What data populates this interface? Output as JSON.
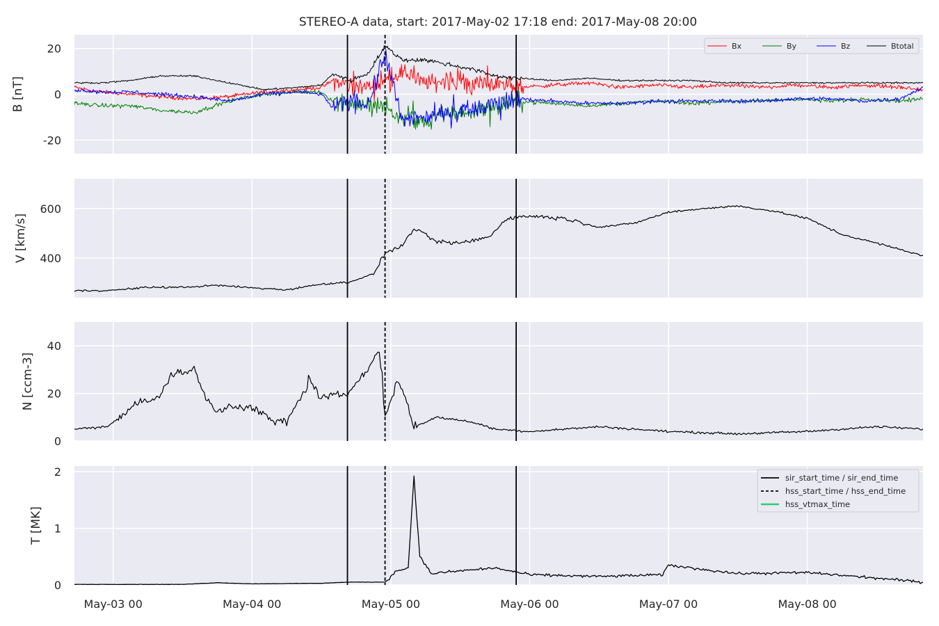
{
  "figure": {
    "title": "STEREO-A data, start: 2017-May-02 17:18  end: 2017-May-08 20:00"
  },
  "colors": {
    "panel_bg": "#eaeaf2",
    "grid": "#ffffff",
    "Bx": "#ff0000",
    "By": "#008000",
    "Bz": "#0000ff",
    "Btotal": "#000000",
    "series": "#000000",
    "hss_vtmax": "#2ecc71"
  },
  "x_axis": {
    "range": [
      "2017-05-02 17:18",
      "2017-05-08 20:00"
    ],
    "ticks": [
      {
        "label": "May-03 00",
        "value": "2017-05-03 00:00"
      },
      {
        "label": "May-04 00",
        "value": "2017-05-04 00:00"
      },
      {
        "label": "May-05 00",
        "value": "2017-05-05 00:00"
      },
      {
        "label": "May-06 00",
        "value": "2017-05-06 00:00"
      },
      {
        "label": "May-07 00",
        "value": "2017-05-07 00:00"
      },
      {
        "label": "May-08 00",
        "value": "2017-05-08 00:00"
      }
    ]
  },
  "events": {
    "sir_start_time": "2017-05-04 16:30",
    "sir_end_time": "2017-05-05 21:40",
    "hss_start_time": "2017-05-04 23:00"
  },
  "legend_events": [
    {
      "label": "sir_start_time / sir_end_time",
      "style": "solid",
      "color": "#000000"
    },
    {
      "label": "hss_start_time / hss_end_time",
      "style": "dashed",
      "color": "#000000"
    },
    {
      "label": "hss_vtmax_time",
      "style": "solid",
      "color": "#2ecc71"
    }
  ],
  "chart_data": [
    {
      "type": "line",
      "panel": "B",
      "ylabel": "B [nT]",
      "ylim": [
        -26,
        26
      ],
      "yticks": [
        -20,
        0,
        20
      ],
      "grid": true,
      "legend": "top-right",
      "series": [
        {
          "name": "Bx",
          "x": [
            "2017-05-02 17:18",
            "2017-05-02 22:00",
            "2017-05-03 03:00",
            "2017-05-03 08:00",
            "2017-05-03 14:00",
            "2017-05-03 20:00",
            "2017-05-04 02:00",
            "2017-05-04 08:00",
            "2017-05-04 12:00",
            "2017-05-04 14:00",
            "2017-05-04 17:00",
            "2017-05-04 20:00",
            "2017-05-04 23:00",
            "2017-05-05 02:00",
            "2017-05-05 06:00",
            "2017-05-05 10:00",
            "2017-05-05 14:00",
            "2017-05-05 18:00",
            "2017-05-05 22:00",
            "2017-05-06 04:00",
            "2017-05-06 10:00",
            "2017-05-06 16:00",
            "2017-05-06 22:00",
            "2017-05-07 04:00",
            "2017-05-07 10:00",
            "2017-05-07 16:00",
            "2017-05-07 22:00",
            "2017-05-08 04:00",
            "2017-05-08 10:00",
            "2017-05-08 16:00",
            "2017-05-08 20:00"
          ],
          "y": [
            3,
            1,
            0,
            -1,
            -2,
            -1,
            1,
            2,
            3,
            6,
            4,
            3,
            6,
            10,
            5,
            6,
            4,
            5,
            3,
            4,
            5,
            3,
            4,
            3,
            4,
            3,
            4,
            3,
            4,
            3,
            2
          ]
        },
        {
          "name": "By",
          "x": [
            "2017-05-02 17:18",
            "2017-05-02 22:00",
            "2017-05-03 03:00",
            "2017-05-03 08:00",
            "2017-05-03 14:00",
            "2017-05-03 20:00",
            "2017-05-04 02:00",
            "2017-05-04 08:00",
            "2017-05-04 12:00",
            "2017-05-04 14:00",
            "2017-05-04 17:00",
            "2017-05-04 20:00",
            "2017-05-04 23:00",
            "2017-05-05 02:00",
            "2017-05-05 06:00",
            "2017-05-05 10:00",
            "2017-05-05 14:00",
            "2017-05-05 18:00",
            "2017-05-05 22:00",
            "2017-05-06 04:00",
            "2017-05-06 10:00",
            "2017-05-06 16:00",
            "2017-05-06 22:00",
            "2017-05-07 04:00",
            "2017-05-07 10:00",
            "2017-05-07 16:00",
            "2017-05-07 22:00",
            "2017-05-08 04:00",
            "2017-05-08 10:00",
            "2017-05-08 16:00",
            "2017-05-08 20:00"
          ],
          "y": [
            -4,
            -5,
            -5,
            -7,
            -8,
            -3,
            0,
            1,
            1,
            -3,
            -3,
            -5,
            -6,
            -10,
            -12,
            -8,
            -8,
            -5,
            -3,
            -4,
            -5,
            -4,
            -3,
            -4,
            -3,
            -3,
            -2,
            -3,
            -2,
            -3,
            -2
          ]
        },
        {
          "name": "Bz",
          "x": [
            "2017-05-02 17:18",
            "2017-05-02 22:00",
            "2017-05-03 03:00",
            "2017-05-03 08:00",
            "2017-05-03 14:00",
            "2017-05-03 20:00",
            "2017-05-04 02:00",
            "2017-05-04 08:00",
            "2017-05-04 12:00",
            "2017-05-04 14:00",
            "2017-05-04 17:00",
            "2017-05-04 20:00",
            "2017-05-04 23:00",
            "2017-05-05 02:00",
            "2017-05-05 06:00",
            "2017-05-05 10:00",
            "2017-05-05 14:00",
            "2017-05-05 18:00",
            "2017-05-05 22:00",
            "2017-05-06 04:00",
            "2017-05-06 10:00",
            "2017-05-06 16:00",
            "2017-05-06 22:00",
            "2017-05-07 04:00",
            "2017-05-07 10:00",
            "2017-05-07 16:00",
            "2017-05-07 22:00",
            "2017-05-08 04:00",
            "2017-05-08 10:00",
            "2017-05-08 16:00",
            "2017-05-08 20:00"
          ],
          "y": [
            2,
            1,
            1,
            0,
            -1,
            -3,
            0,
            1,
            0,
            -6,
            -2,
            -5,
            18,
            -12,
            -10,
            -8,
            -6,
            -4,
            -2,
            -3,
            -4,
            -4,
            -3,
            -3,
            -3,
            -3,
            -2,
            -2,
            -3,
            -2,
            3
          ]
        },
        {
          "name": "Btotal",
          "x": [
            "2017-05-02 17:18",
            "2017-05-02 22:00",
            "2017-05-03 03:00",
            "2017-05-03 08:00",
            "2017-05-03 14:00",
            "2017-05-03 20:00",
            "2017-05-04 02:00",
            "2017-05-04 08:00",
            "2017-05-04 12:00",
            "2017-05-04 14:00",
            "2017-05-04 17:00",
            "2017-05-04 20:00",
            "2017-05-04 23:00",
            "2017-05-05 02:00",
            "2017-05-05 06:00",
            "2017-05-05 10:00",
            "2017-05-05 14:00",
            "2017-05-05 18:00",
            "2017-05-05 22:00",
            "2017-05-06 04:00",
            "2017-05-06 10:00",
            "2017-05-06 16:00",
            "2017-05-06 22:00",
            "2017-05-07 04:00",
            "2017-05-07 10:00",
            "2017-05-07 16:00",
            "2017-05-07 22:00",
            "2017-05-08 04:00",
            "2017-05-08 10:00",
            "2017-05-08 16:00",
            "2017-05-08 20:00"
          ],
          "y": [
            5,
            5,
            6,
            8,
            8,
            5,
            2,
            3,
            4,
            9,
            6,
            9,
            21,
            15,
            15,
            13,
            11,
            8,
            7,
            6,
            7,
            6,
            6,
            6,
            5,
            5,
            5,
            5,
            5,
            5,
            5
          ]
        }
      ]
    },
    {
      "type": "line",
      "panel": "V",
      "ylabel": "V [km/s]",
      "ylim": [
        240,
        720
      ],
      "yticks": [
        400,
        600
      ],
      "grid": true,
      "series": [
        {
          "x": [
            "2017-05-02 17:18",
            "2017-05-03 00:00",
            "2017-05-03 06:00",
            "2017-05-03 12:00",
            "2017-05-03 18:00",
            "2017-05-04 00:00",
            "2017-05-04 06:00",
            "2017-05-04 12:00",
            "2017-05-04 16:30",
            "2017-05-04 19:00",
            "2017-05-04 21:00",
            "2017-05-04 23:00",
            "2017-05-05 02:00",
            "2017-05-05 04:00",
            "2017-05-05 08:00",
            "2017-05-05 12:00",
            "2017-05-05 17:00",
            "2017-05-05 20:00",
            "2017-05-06 00:00",
            "2017-05-06 06:00",
            "2017-05-06 12:00",
            "2017-05-06 18:00",
            "2017-05-07 00:00",
            "2017-05-07 06:00",
            "2017-05-07 12:00",
            "2017-05-07 18:00",
            "2017-05-08 00:00",
            "2017-05-08 06:00",
            "2017-05-08 12:00",
            "2017-05-08 20:00"
          ],
          "y": [
            268,
            270,
            282,
            282,
            290,
            280,
            272,
            295,
            302,
            320,
            335,
            420,
            450,
            520,
            465,
            460,
            485,
            560,
            570,
            560,
            525,
            540,
            585,
            600,
            610,
            590,
            560,
            495,
            460,
            410
          ]
        }
      ]
    },
    {
      "type": "line",
      "panel": "N",
      "ylabel": "N [ccm-3]",
      "ylim": [
        0,
        50
      ],
      "yticks": [
        0,
        20,
        40
      ],
      "grid": true,
      "series": [
        {
          "x": [
            "2017-05-02 17:18",
            "2017-05-02 23:00",
            "2017-05-03 04:00",
            "2017-05-03 08:00",
            "2017-05-03 10:00",
            "2017-05-03 14:00",
            "2017-05-03 16:00",
            "2017-05-03 18:00",
            "2017-05-03 20:00",
            "2017-05-04 00:00",
            "2017-05-04 04:00",
            "2017-05-04 06:00",
            "2017-05-04 10:00",
            "2017-05-04 12:00",
            "2017-05-04 16:30",
            "2017-05-04 20:00",
            "2017-05-04 22:00",
            "2017-05-04 23:00",
            "2017-05-05 01:00",
            "2017-05-05 02:00",
            "2017-05-05 04:00",
            "2017-05-05 08:00",
            "2017-05-05 14:00",
            "2017-05-05 18:00",
            "2017-05-06 00:00",
            "2017-05-06 12:00",
            "2017-05-07 00:00",
            "2017-05-07 12:00",
            "2017-05-08 00:00",
            "2017-05-08 12:00",
            "2017-05-08 20:00"
          ],
          "y": [
            5,
            6,
            16,
            18,
            28,
            30,
            18,
            12,
            15,
            14,
            8,
            8,
            25,
            18,
            20,
            30,
            38,
            10,
            25,
            22,
            6,
            10,
            8,
            5,
            4,
            6,
            4,
            3,
            4,
            6,
            5
          ]
        }
      ]
    },
    {
      "type": "line",
      "panel": "T",
      "ylabel": "T [MK]",
      "ylim": [
        0,
        2.1
      ],
      "yticks": [
        0,
        1,
        2
      ],
      "grid": true,
      "legend": "top-right",
      "series": [
        {
          "x": [
            "2017-05-02 17:18",
            "2017-05-03 12:00",
            "2017-05-03 18:00",
            "2017-05-04 00:00",
            "2017-05-04 12:00",
            "2017-05-04 16:30",
            "2017-05-04 23:00",
            "2017-05-05 01:00",
            "2017-05-05 03:00",
            "2017-05-05 04:00",
            "2017-05-05 05:00",
            "2017-05-05 07:00",
            "2017-05-05 12:00",
            "2017-05-05 18:00",
            "2017-05-06 00:00",
            "2017-05-06 12:00",
            "2017-05-06 23:00",
            "2017-05-07 00:00",
            "2017-05-07 12:00",
            "2017-05-08 00:00",
            "2017-05-08 12:00",
            "2017-05-08 20:00"
          ],
          "y": [
            0.01,
            0.01,
            0.04,
            0.02,
            0.03,
            0.05,
            0.05,
            0.25,
            0.3,
            1.93,
            0.5,
            0.2,
            0.25,
            0.3,
            0.18,
            0.15,
            0.18,
            0.35,
            0.2,
            0.22,
            0.12,
            0.05
          ]
        }
      ]
    }
  ]
}
